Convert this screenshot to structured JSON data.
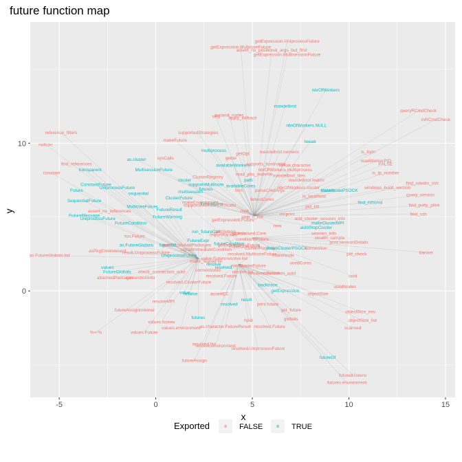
{
  "chart_data": {
    "type": "scatter",
    "title": "future function map",
    "xlabel": "x",
    "ylabel": "y",
    "xlim": [
      -6.5,
      15.5
    ],
    "ylim": [
      -7.2,
      18.2
    ],
    "xticks": [
      -5,
      0,
      5,
      10,
      15
    ],
    "yticks": [
      0,
      10
    ],
    "grid": true,
    "legend": {
      "title": "Exported",
      "position": "bottom",
      "entries": [
        {
          "key": "a",
          "label": "FALSE",
          "color": "#F8766D"
        },
        {
          "key": "a",
          "label": "TRUE",
          "color": "#00BFC4"
        }
      ]
    },
    "colors": {
      "FALSE": "#F8766D",
      "TRUE": "#00BFC4",
      "panel": "#EBEBEB",
      "edge": "#7f7f7f"
    },
    "hubs": [
      [
        5.1,
        5.1
      ],
      [
        4.3,
        1.8
      ],
      [
        3.9,
        3.3
      ],
      [
        2.2,
        2.2
      ],
      [
        5.0,
        3.6
      ],
      [
        4.0,
        2.8
      ]
    ],
    "points": [
      {
        "label": "getExpression.UniprocessFuture",
        "x": 6.8,
        "y": 16.9,
        "exported": false
      },
      {
        "label": "getExpression.MulticoreFuture",
        "x": 4.4,
        "y": 16.5,
        "exported": false
      },
      {
        "label": "assert_no_positional_args_but_first",
        "x": 6.0,
        "y": 16.3,
        "exported": false
      },
      {
        "label": "getExpression.MultisessionFuture",
        "x": 6.8,
        "y": 16.0,
        "exported": false
      },
      {
        "label": "nbrOfWorkers",
        "x": 8.8,
        "y": 13.6,
        "exported": true
      },
      {
        "label": "mandelbrot",
        "x": 6.7,
        "y": 12.5,
        "exported": true
      },
      {
        "label": "expand_nodes",
        "x": 3.8,
        "y": 11.9,
        "exported": false
      },
      {
        "label": "seq",
        "x": 3.1,
        "y": 11.8,
        "exported": false
      },
      {
        "label": "apply_fallback",
        "x": 4.5,
        "y": 11.7,
        "exported": false
      },
      {
        "label": "nbrOfWorkers.NULL",
        "x": 7.8,
        "y": 11.2,
        "exported": true
      },
      {
        "label": "queryRCmdCheck",
        "x": 13.6,
        "y": 12.2,
        "exported": false
      },
      {
        "label": "inRCmdCheck",
        "x": 14.5,
        "y": 11.6,
        "exported": false
      },
      {
        "label": "reference_filters",
        "x": -4.9,
        "y": 10.7,
        "exported": false
      },
      {
        "label": "supportedStrategies",
        "x": 2.2,
        "y": 10.7,
        "exported": false
      },
      {
        "label": "makeFuture",
        "x": 1.0,
        "y": 10.2,
        "exported": false
      },
      {
        "label": "tweak",
        "x": 8.0,
        "y": 10.1,
        "exported": true
      },
      {
        "label": "nullcon",
        "x": -5.7,
        "y": 9.9,
        "exported": false
      },
      {
        "label": "multiprocess",
        "x": 3.0,
        "y": 9.5,
        "exported": true
      },
      {
        "label": "getOpt",
        "x": 4.5,
        "y": 9.3,
        "exported": false
      },
      {
        "label": "mandelbrot.numeric",
        "x": 6.4,
        "y": 9.4,
        "exported": false
      },
      {
        "label": "is_fqdn",
        "x": 11.0,
        "y": 9.4,
        "exported": false
      },
      {
        "label": "sysCalls",
        "x": 0.5,
        "y": 9.0,
        "exported": false
      },
      {
        "label": "as.cluster",
        "x": -1.0,
        "y": 8.9,
        "exported": true
      },
      {
        "label": "getter",
        "x": 3.9,
        "y": 9.0,
        "exported": false
      },
      {
        "label": "readWorkerPID",
        "x": 11.4,
        "y": 8.8,
        "exported": false
      },
      {
        "label": "FALSE",
        "x": 11.9,
        "y": 8.6,
        "exported": false
      },
      {
        "label": "find_references",
        "x": -4.1,
        "y": 8.6,
        "exported": false
      },
      {
        "label": "availableWorkers",
        "x": 4.0,
        "y": 8.5,
        "exported": true
      },
      {
        "label": "supports_hostname",
        "x": 5.7,
        "y": 8.6,
        "exported": false
      },
      {
        "label": "tweak.character",
        "x": 7.2,
        "y": 8.5,
        "exported": false
      },
      {
        "label": "transparent",
        "x": -3.4,
        "y": 8.2,
        "exported": true
      },
      {
        "label": "MultisessionFuture",
        "x": -0.1,
        "y": 8.2,
        "exported": true
      },
      {
        "label": "nbrOfWorkers.multiprocess",
        "x": 6.7,
        "y": 8.2,
        "exported": false
      },
      {
        "label": "constant",
        "x": -5.4,
        "y": 8.0,
        "exported": false
      },
      {
        "label": "is_ip_number",
        "x": 11.9,
        "y": 8.0,
        "exported": false
      },
      {
        "label": "read_pbs_nodefile",
        "x": 5.1,
        "y": 7.9,
        "exported": false
      },
      {
        "label": "mandelbrot_tiles",
        "x": 6.9,
        "y": 7.8,
        "exported": false
      },
      {
        "label": "ClusterRegistry",
        "x": 2.7,
        "y": 7.7,
        "exported": false
      },
      {
        "label": "cluster",
        "x": 1.5,
        "y": 7.5,
        "exported": true
      },
      {
        "label": "path",
        "x": 4.8,
        "y": 7.5,
        "exported": true
      },
      {
        "label": "mandelbrot.matrix",
        "x": 7.8,
        "y": 7.5,
        "exported": false
      },
      {
        "label": "supportsMulticore",
        "x": 2.6,
        "y": 7.2,
        "exported": true
      },
      {
        "label": "availableCores",
        "x": 4.4,
        "y": 7.1,
        "exported": true
      },
      {
        "label": "ConstantFuture",
        "x": -3.1,
        "y": 7.2,
        "exported": true
      },
      {
        "label": "UniprocessFuture",
        "x": -2.0,
        "y": 7.0,
        "exported": true
      },
      {
        "label": "nbrOfWorkers.cluster",
        "x": 7.4,
        "y": 7.0,
        "exported": false
      },
      {
        "label": "windows_build_version",
        "x": 12.0,
        "y": 7.0,
        "exported": false
      },
      {
        "label": "futures",
        "x": 2.6,
        "y": 6.9,
        "exported": true
      },
      {
        "label": "trim",
        "x": 4.3,
        "y": 6.8,
        "exported": false
      },
      {
        "label": "parseCmdArgs",
        "x": 5.9,
        "y": 6.8,
        "exported": false
      },
      {
        "label": "Future",
        "x": -4.1,
        "y": 6.8,
        "exported": true
      },
      {
        "label": "cluster",
        "x": 8.9,
        "y": 6.8,
        "exported": true
      },
      {
        "label": "makeNodePSOCK",
        "x": 9.5,
        "y": 6.8,
        "exported": true
      },
      {
        "label": "multisession",
        "x": 1.8,
        "y": 6.7,
        "exported": true
      },
      {
        "label": "sequential",
        "x": -0.9,
        "y": 6.6,
        "exported": true
      },
      {
        "label": "is_localhost",
        "x": 8.2,
        "y": 6.4,
        "exported": false
      },
      {
        "label": "find_rstudio_ssh",
        "x": 13.8,
        "y": 7.3,
        "exported": false
      },
      {
        "label": "query_version",
        "x": 13.7,
        "y": 6.5,
        "exported": false
      },
      {
        "label": "ClusterFuture",
        "x": 1.2,
        "y": 6.3,
        "exported": true
      },
      {
        "label": "makeEnvironment",
        "x": 2.3,
        "y": 6.0,
        "exported": false
      },
      {
        "label": "FutureError",
        "x": 2.9,
        "y": 5.9,
        "exported": true
      },
      {
        "label": "detectCores",
        "x": 5.5,
        "y": 6.2,
        "exported": false
      },
      {
        "label": "SequentialFuture",
        "x": -3.7,
        "y": 6.1,
        "exported": true
      },
      {
        "label": "find_rshcmd",
        "x": 11.1,
        "y": 6.0,
        "exported": true
      },
      {
        "label": "find_putty_plink",
        "x": 13.9,
        "y": 5.8,
        "exported": false
      },
      {
        "label": "supportsMulticore.RStudio",
        "x": 2.8,
        "y": 5.8,
        "exported": false
      },
      {
        "label": "MulticoreFuture",
        "x": -0.7,
        "y": 5.7,
        "exported": true
      },
      {
        "label": "pid_kill",
        "x": 8.1,
        "y": 5.7,
        "exported": false
      },
      {
        "label": "assert_no_references",
        "x": -2.4,
        "y": 5.4,
        "exported": false
      },
      {
        "label": "FutureResult",
        "x": 0.7,
        "y": 5.5,
        "exported": true
      },
      {
        "label": "mclr",
        "x": 4.6,
        "y": 5.4,
        "exported": false
      },
      {
        "label": "find_ssh",
        "x": 13.6,
        "y": 5.2,
        "exported": false
      },
      {
        "label": "mcprint",
        "x": 6.8,
        "y": 5.2,
        "exported": false
      },
      {
        "label": "FutureMessage",
        "x": -3.7,
        "y": 5.1,
        "exported": true
      },
      {
        "label": "FutureWarning",
        "x": 0.6,
        "y": 5.0,
        "exported": true
      },
      {
        "label": "stop_if_not",
        "x": 5.0,
        "y": 5.0,
        "exported": false
      },
      {
        "label": "add_cluster_session_info",
        "x": 8.5,
        "y": 4.9,
        "exported": false
      },
      {
        "label": "UniprocessFuture",
        "x": -3.0,
        "y": 4.9,
        "exported": true
      },
      {
        "label": "getExpression.Future",
        "x": 4.0,
        "y": 4.8,
        "exported": false
      },
      {
        "label": "makeClusterMPI",
        "x": 8.9,
        "y": 4.6,
        "exported": true
      },
      {
        "label": "FutureCondition",
        "x": -1.3,
        "y": 4.6,
        "exported": true
      },
      {
        "label": "new",
        "x": 6.3,
        "y": 4.4,
        "exported": false
      },
      {
        "label": "autoStopCluster",
        "x": 8.3,
        "y": 4.3,
        "exported": true
      },
      {
        "label": "run_futureCall",
        "x": 2.6,
        "y": 4.0,
        "exported": true
      },
      {
        "label": "getGlobals",
        "x": 3.6,
        "y": 4.0,
        "exported": false
      },
      {
        "label": "globals",
        "x": 4.3,
        "y": 3.9,
        "exported": false
      },
      {
        "label": "resolved.Core",
        "x": 5.0,
        "y": 3.9,
        "exported": false
      },
      {
        "label": "session_info",
        "x": 8.7,
        "y": 3.9,
        "exported": false
      },
      {
        "label": "run.Future",
        "x": -1.1,
        "y": 3.7,
        "exported": false
      },
      {
        "label": "importParallel",
        "x": 3.5,
        "y": 3.8,
        "exported": false
      },
      {
        "label": "conditionsFuture",
        "x": 5.0,
        "y": 3.5,
        "exported": false
      },
      {
        "label": "stealth_sample",
        "x": 9.0,
        "y": 3.6,
        "exported": false
      },
      {
        "label": "FutureExpr",
        "x": 2.2,
        "y": 3.4,
        "exported": true
      },
      {
        "label": "futureCondition",
        "x": 3.8,
        "y": 3.2,
        "exported": true
      },
      {
        "label": "getExpression.Future",
        "x": 4.3,
        "y": 3.1,
        "exported": false
      },
      {
        "label": "makeOutFuture",
        "x": 4.6,
        "y": 3.0,
        "exported": false
      },
      {
        "label": "print.sessionDetails",
        "x": 10.0,
        "y": 3.3,
        "exported": false
      },
      {
        "label": "as.FutureGlobals",
        "x": -1.0,
        "y": 3.1,
        "exported": true
      },
      {
        "label": "getGlobalsAndPackages",
        "x": 1.6,
        "y": 3.1,
        "exported": false
      },
      {
        "label": "futureOf",
        "x": 0.6,
        "y": 3.1,
        "exported": true
      },
      {
        "label": "ClusterRegistry",
        "x": 5.4,
        "y": 2.9,
        "exported": false
      },
      {
        "label": "makeClusterPSOCK",
        "x": 6.8,
        "y": 2.9,
        "exported": true
      },
      {
        "label": "connection",
        "x": 8.3,
        "y": 2.9,
        "exported": false
      },
      {
        "label": "asPkgEnvironment",
        "x": -2.5,
        "y": 2.7,
        "exported": false
      },
      {
        "label": "result.UniprocessFuture",
        "x": -0.5,
        "y": 2.6,
        "exported": false
      },
      {
        "label": "signalImmediateCondition",
        "x": 2.6,
        "y": 2.8,
        "exported": false
      },
      {
        "label": "resolved.MulticoreFuture",
        "x": 5.0,
        "y": 2.5,
        "exported": false
      },
      {
        "label": "makeNode",
        "x": 6.6,
        "y": 2.4,
        "exported": false
      },
      {
        "label": "pid_check",
        "x": 10.4,
        "y": 2.5,
        "exported": false
      },
      {
        "label": "banner",
        "x": 14.0,
        "y": 2.6,
        "exported": false
      },
      {
        "label": "as.FutureGlobals.list",
        "x": -5.5,
        "y": 2.4,
        "exported": false
      },
      {
        "label": "UniprocessFuture",
        "x": 1.2,
        "y": 2.4,
        "exported": true
      },
      {
        "label": "value.Future",
        "x": 3.0,
        "y": 2.2,
        "exported": false
      },
      {
        "label": "resolve.list",
        "x": 4.2,
        "y": 2.2,
        "exported": false
      },
      {
        "label": "usedCores",
        "x": 7.5,
        "y": 1.9,
        "exported": false
      },
      {
        "label": "make_signalFile",
        "x": 2.6,
        "y": 2.0,
        "exported": false
      },
      {
        "label": "resolve",
        "x": 3.0,
        "y": 1.8,
        "exported": true
      },
      {
        "label": "values",
        "x": -2.5,
        "y": 1.6,
        "exported": true
      },
      {
        "label": "resolved",
        "x": 3.5,
        "y": 1.6,
        "exported": true
      },
      {
        "label": "run.ClusterFuture",
        "x": 4.8,
        "y": 1.7,
        "exported": false
      },
      {
        "label": "FutureGlobals",
        "x": -2.0,
        "y": 1.3,
        "exported": true
      },
      {
        "label": "check_connection_uuid",
        "x": 0.3,
        "y": 1.3,
        "exported": false
      },
      {
        "label": "connectionId",
        "x": 2.7,
        "y": 1.4,
        "exported": false
      },
      {
        "label": "resolve.list",
        "x": 4.5,
        "y": 1.3,
        "exported": false
      },
      {
        "label": "resolved.Future",
        "x": 5.6,
        "y": 1.2,
        "exported": false
      },
      {
        "label": "connection_uuid",
        "x": 6.4,
        "y": 1.2,
        "exported": false
      },
      {
        "label": "attachedPackages",
        "x": -2.1,
        "y": 0.9,
        "exported": false
      },
      {
        "label": "connectionInfo",
        "x": -0.8,
        "y": 0.9,
        "exported": false
      },
      {
        "label": "resolved.Future",
        "x": 3.4,
        "y": 1.0,
        "exported": false
      },
      {
        "label": "uuid",
        "x": 10.2,
        "y": 1.0,
        "exported": false
      },
      {
        "label": "resolved.ClusterFuture",
        "x": 1.7,
        "y": 0.6,
        "exported": false
      },
      {
        "label": "backtrace",
        "x": 5.8,
        "y": 0.4,
        "exported": true
      },
      {
        "label": "usedNodes",
        "x": 9.8,
        "y": 0.3,
        "exported": false
      },
      {
        "label": "getExpression",
        "x": 6.7,
        "y": 0.0,
        "exported": true
      },
      {
        "label": "value",
        "x": 1.5,
        "y": -0.1,
        "exported": true
      },
      {
        "label": "resolve",
        "x": 1.8,
        "y": -0.2,
        "exported": true
      },
      {
        "label": "assertEC",
        "x": 3.3,
        "y": -0.2,
        "exported": false
      },
      {
        "label": "objectSize",
        "x": 8.4,
        "y": -0.2,
        "exported": false
      },
      {
        "label": "result",
        "x": 4.7,
        "y": -0.6,
        "exported": true
      },
      {
        "label": "resolveMPI",
        "x": 0.4,
        "y": -0.7,
        "exported": false
      },
      {
        "label": "resolved",
        "x": 3.8,
        "y": -0.9,
        "exported": true
      },
      {
        "label": "print.future",
        "x": 5.8,
        "y": -0.9,
        "exported": false
      },
      {
        "label": "get_future",
        "x": 7.0,
        "y": -1.3,
        "exported": false
      },
      {
        "label": "futureAssignInternal",
        "x": -1.1,
        "y": -1.3,
        "exported": false
      },
      {
        "label": "objectSize_env",
        "x": 10.6,
        "y": -1.4,
        "exported": false
      },
      {
        "label": "futures",
        "x": 2.2,
        "y": -1.8,
        "exported": true
      },
      {
        "label": "globals",
        "x": 7.0,
        "y": -1.9,
        "exported": false
      },
      {
        "label": "objectSize_list",
        "x": 10.7,
        "y": -2.0,
        "exported": false
      },
      {
        "label": "hpid",
        "x": 4.8,
        "y": -2.0,
        "exported": false
      },
      {
        "label": "values.listenv",
        "x": 0.3,
        "y": -2.1,
        "exported": false
      },
      {
        "label": "as.character.FutureResult",
        "x": 3.6,
        "y": -2.4,
        "exported": false
      },
      {
        "label": "resolved.Future",
        "x": 5.9,
        "y": -2.4,
        "exported": false
      },
      {
        "label": "values.environment",
        "x": 1.3,
        "y": -2.5,
        "exported": false
      },
      {
        "label": "scanned",
        "x": 10.2,
        "y": -2.5,
        "exported": false
      },
      {
        "label": "%<-%",
        "x": -3.1,
        "y": -2.8,
        "exported": false
      },
      {
        "label": "values.Future",
        "x": -0.6,
        "y": -2.8,
        "exported": false
      },
      {
        "label": "resolved.list",
        "x": 2.5,
        "y": -3.6,
        "exported": false
      },
      {
        "label": "resolve.environment",
        "x": 3.1,
        "y": -3.7,
        "exported": false
      },
      {
        "label": "resolved.UniprocessFuture",
        "x": 5.3,
        "y": -3.9,
        "exported": false
      },
      {
        "label": "futureOf",
        "x": 8.9,
        "y": -4.5,
        "exported": true
      },
      {
        "label": "futureAssign",
        "x": 2.0,
        "y": -4.7,
        "exported": false
      },
      {
        "label": "futured.listenv",
        "x": 10.2,
        "y": -5.7,
        "exported": false
      },
      {
        "label": "futures.environment",
        "x": 9.9,
        "y": -6.2,
        "exported": false
      }
    ]
  }
}
